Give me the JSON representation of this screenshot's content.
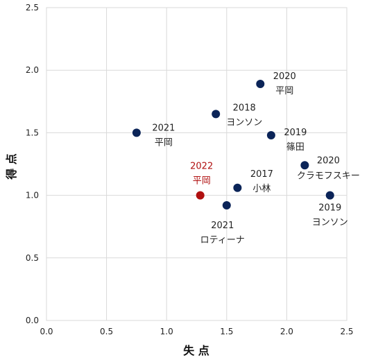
{
  "chart_data": {
    "type": "scatter",
    "xlabel": "失 点",
    "ylabel": "得 点",
    "xlim": [
      0,
      2.5
    ],
    "ylim": [
      0,
      2.5
    ],
    "x_ticks": [
      "0.0",
      "0.5",
      "1.0",
      "1.5",
      "2.0",
      "2.5"
    ],
    "y_ticks": [
      "0.0",
      "0.5",
      "1.0",
      "1.5",
      "2.0",
      "2.5"
    ],
    "grid": true,
    "legend": "none",
    "colors": {
      "default": "#0b2458",
      "highlight": "#b01010",
      "grid": "#d9d9d9"
    },
    "points": [
      {
        "x": 0.75,
        "y": 1.5,
        "year": "2021",
        "name": "平岡",
        "highlight": false
      },
      {
        "x": 1.41,
        "y": 1.65,
        "year": "2018",
        "name": "ヨンソン",
        "highlight": false
      },
      {
        "x": 1.78,
        "y": 1.89,
        "year": "2020",
        "name": "平岡",
        "highlight": false
      },
      {
        "x": 1.87,
        "y": 1.48,
        "year": "2019",
        "name": "篠田",
        "highlight": false
      },
      {
        "x": 2.15,
        "y": 1.24,
        "year": "2020",
        "name": "クラモフスキー",
        "highlight": false
      },
      {
        "x": 2.36,
        "y": 1.0,
        "year": "2019",
        "name": "ヨンソン",
        "highlight": false
      },
      {
        "x": 1.59,
        "y": 1.06,
        "year": "2017",
        "name": "小林",
        "highlight": false
      },
      {
        "x": 1.5,
        "y": 0.92,
        "year": "2021",
        "name": "ロティーナ",
        "highlight": false
      },
      {
        "x": 1.28,
        "y": 1.0,
        "year": "2022",
        "name": "平岡",
        "highlight": true
      }
    ]
  }
}
